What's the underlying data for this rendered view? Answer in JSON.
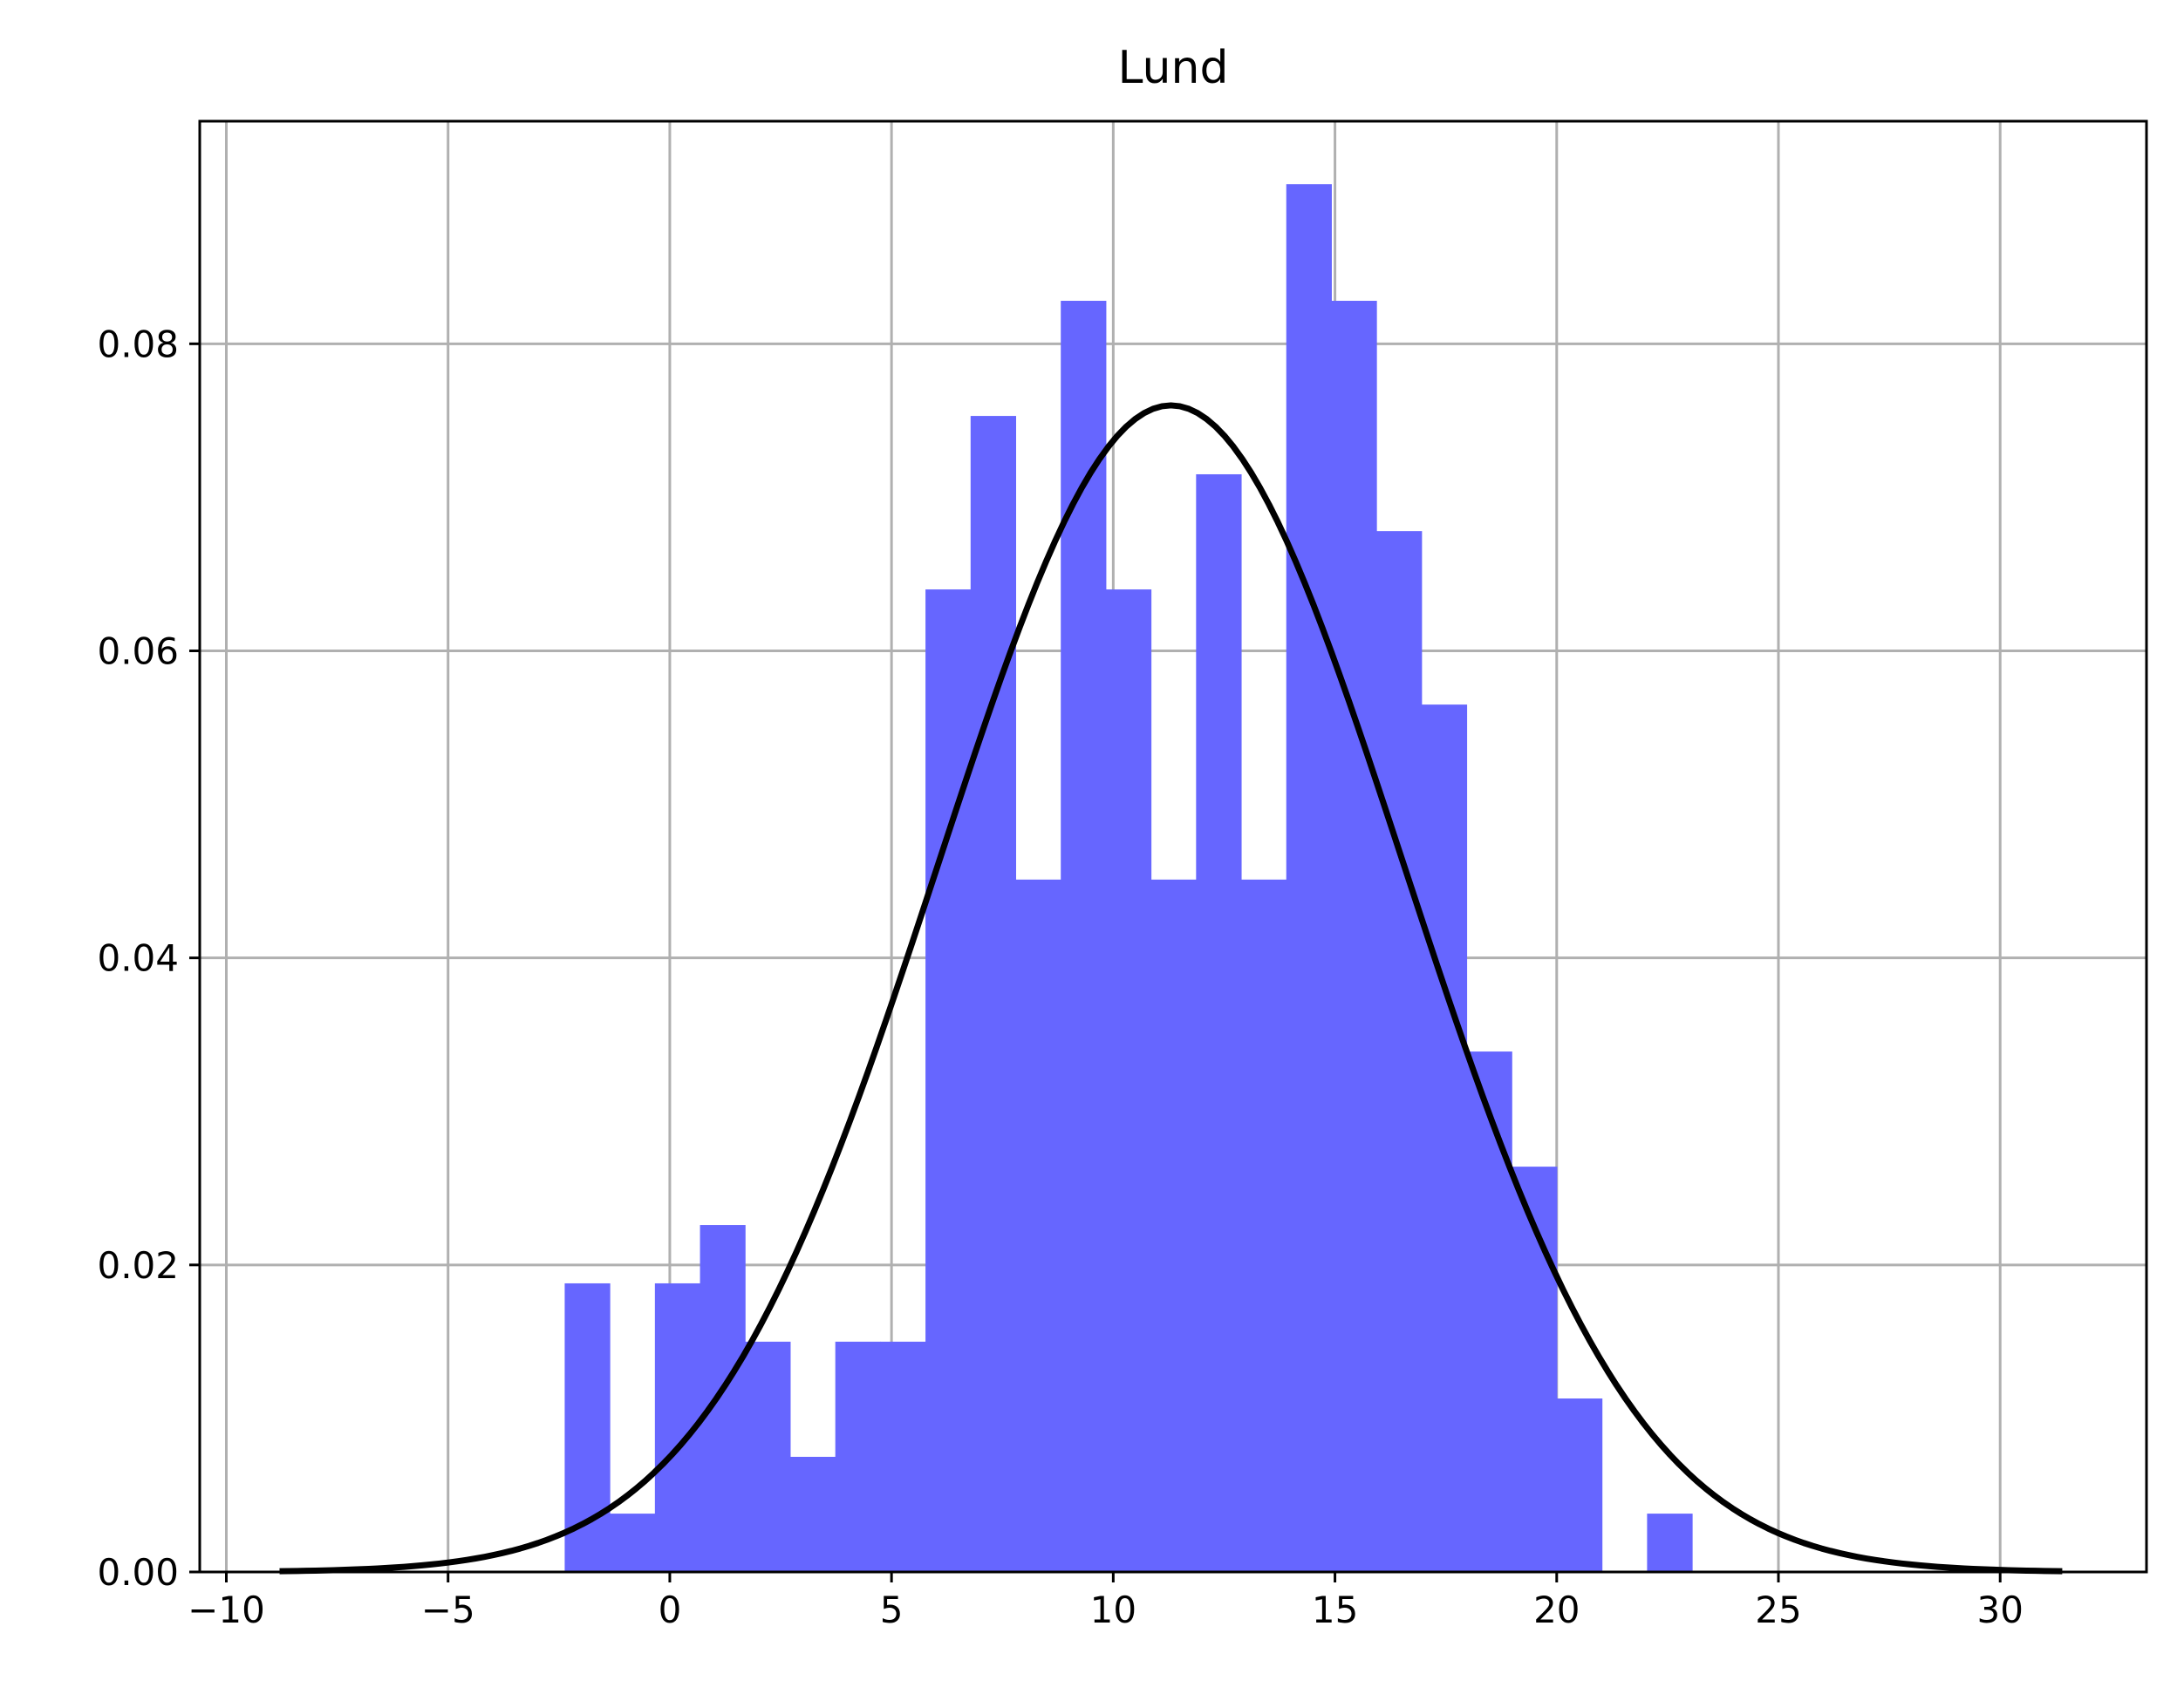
{
  "chart_data": {
    "type": "bar",
    "title": "Lund",
    "xlabel": "",
    "ylabel": "",
    "xlim": [
      -10.6,
      33.3
    ],
    "ylim": [
      0,
      0.0945
    ],
    "grid": true,
    "bar_color": "#6666ff",
    "curve_color": "#000000",
    "grid_color": "#b0b0b0",
    "xticks": [
      -10,
      -5,
      0,
      5,
      10,
      15,
      20,
      25,
      30
    ],
    "xtick_labels": [
      "−10",
      "−5",
      "0",
      "5",
      "10",
      "15",
      "20",
      "25",
      "30"
    ],
    "yticks": [
      0,
      0.02,
      0.04,
      0.06,
      0.08
    ],
    "ytick_labels": [
      "0.00",
      "0.02",
      "0.04",
      "0.06",
      "0.08"
    ],
    "histogram": {
      "bin_start": -2.37,
      "bin_width": 1.017,
      "values": [
        0.0188,
        0.0038,
        0.0188,
        0.0226,
        0.015,
        0.0075,
        0.015,
        0.015,
        0.064,
        0.0753,
        0.0451,
        0.0828,
        0.064,
        0.0451,
        0.0715,
        0.0451,
        0.0904,
        0.0828,
        0.0678,
        0.0565,
        0.0339,
        0.0264,
        0.0113,
        0.0,
        0.0038
      ]
    },
    "fit_curve": {
      "type": "normal_pdf",
      "mean": 11.3,
      "std": 5.25,
      "x_range": [
        -8.8,
        31.4
      ]
    }
  }
}
